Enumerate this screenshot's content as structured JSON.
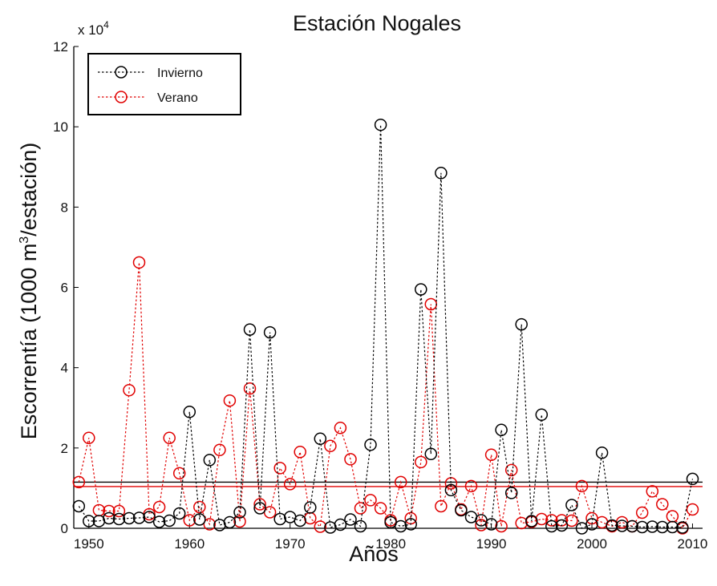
{
  "chart_data": {
    "type": "line",
    "title": "Estación Nogales",
    "xlabel": "Años",
    "ylabel_main": "Escorrentía (1000 m",
    "ylabel_sup": "3",
    "ylabel_tail": "/estación)",
    "multiplier_base": "x 10",
    "multiplier_exp": "4",
    "xlim": [
      1948.5,
      2011
    ],
    "ylim": [
      0,
      120000
    ],
    "x_ticks": [
      1950,
      1960,
      1970,
      1980,
      1990,
      2000,
      2010
    ],
    "y_ticks": [
      0,
      20000,
      40000,
      60000,
      80000,
      100000,
      120000
    ],
    "y_tick_labels": [
      "0",
      "2",
      "4",
      "6",
      "8",
      "10",
      "12"
    ],
    "x_tick_labels": [
      "1950",
      "1960",
      "1970",
      "1980",
      "1990",
      "2000",
      "2010"
    ],
    "legend": {
      "position": "top-left"
    },
    "series": [
      {
        "name": "Invierno",
        "color": "#000000",
        "x": [
          1949,
          1950,
          1951,
          1952,
          1953,
          1954,
          1955,
          1956,
          1957,
          1958,
          1959,
          1960,
          1961,
          1962,
          1963,
          1964,
          1965,
          1966,
          1967,
          1968,
          1969,
          1970,
          1971,
          1972,
          1973,
          1974,
          1975,
          1976,
          1977,
          1978,
          1979,
          1980,
          1981,
          1982,
          1983,
          1984,
          1985,
          1986,
          1987,
          1988,
          1989,
          1990,
          1991,
          1992,
          1993,
          1994,
          1995,
          1996,
          1997,
          1998,
          1999,
          2000,
          2001,
          2002,
          2003,
          2004,
          2005,
          2006,
          2007,
          2008,
          2009,
          2010
        ],
        "values": [
          5500,
          1800,
          1800,
          2500,
          2300,
          2500,
          2600,
          2800,
          1600,
          1900,
          3700,
          29000,
          2200,
          17000,
          800,
          1500,
          4000,
          49500,
          5000,
          48800,
          2300,
          2800,
          1900,
          5200,
          22300,
          200,
          900,
          2200,
          500,
          20800,
          100500,
          1500,
          500,
          1000,
          59500,
          18500,
          88500,
          9500,
          4500,
          2800,
          2000,
          1000,
          24500,
          8800,
          50800,
          1800,
          28300,
          500,
          700,
          5800,
          0,
          1000,
          18800,
          700,
          600,
          500,
          300,
          400,
          300,
          300,
          200,
          12300
        ]
      },
      {
        "name": "Verano",
        "color": "#e00000",
        "x": [
          1949,
          1950,
          1951,
          1952,
          1953,
          1954,
          1955,
          1956,
          1957,
          1958,
          1959,
          1960,
          1961,
          1962,
          1963,
          1964,
          1965,
          1966,
          1967,
          1968,
          1969,
          1970,
          1971,
          1972,
          1973,
          1974,
          1975,
          1976,
          1977,
          1978,
          1979,
          1980,
          1981,
          1982,
          1983,
          1984,
          1985,
          1986,
          1987,
          1988,
          1989,
          1990,
          1991,
          1992,
          1993,
          1994,
          1995,
          1996,
          1997,
          1998,
          1999,
          2000,
          2001,
          2002,
          2003,
          2004,
          2005,
          2006,
          2007,
          2008,
          2009,
          2010
        ],
        "values": [
          11500,
          22500,
          4500,
          4300,
          4300,
          34400,
          66200,
          3500,
          5300,
          22500,
          13700,
          2000,
          5300,
          1000,
          19500,
          31800,
          1700,
          34800,
          6000,
          4000,
          15000,
          11000,
          19000,
          2500,
          400,
          20500,
          25000,
          17200,
          5000,
          7000,
          5000,
          2000,
          11500,
          2500,
          16500,
          55800,
          5500,
          11200,
          4700,
          10500,
          800,
          18300,
          500,
          14500,
          1300,
          1600,
          2300,
          2000,
          2000,
          1900,
          10500,
          2500,
          1500,
          500,
          1500,
          500,
          3900,
          9200,
          6000,
          3000,
          0,
          4700
        ]
      }
    ],
    "mean_lines": [
      {
        "series": "Invierno",
        "value": 11500,
        "color": "#000000"
      },
      {
        "series": "Verano",
        "value": 10400,
        "color": "#e00000"
      }
    ]
  }
}
